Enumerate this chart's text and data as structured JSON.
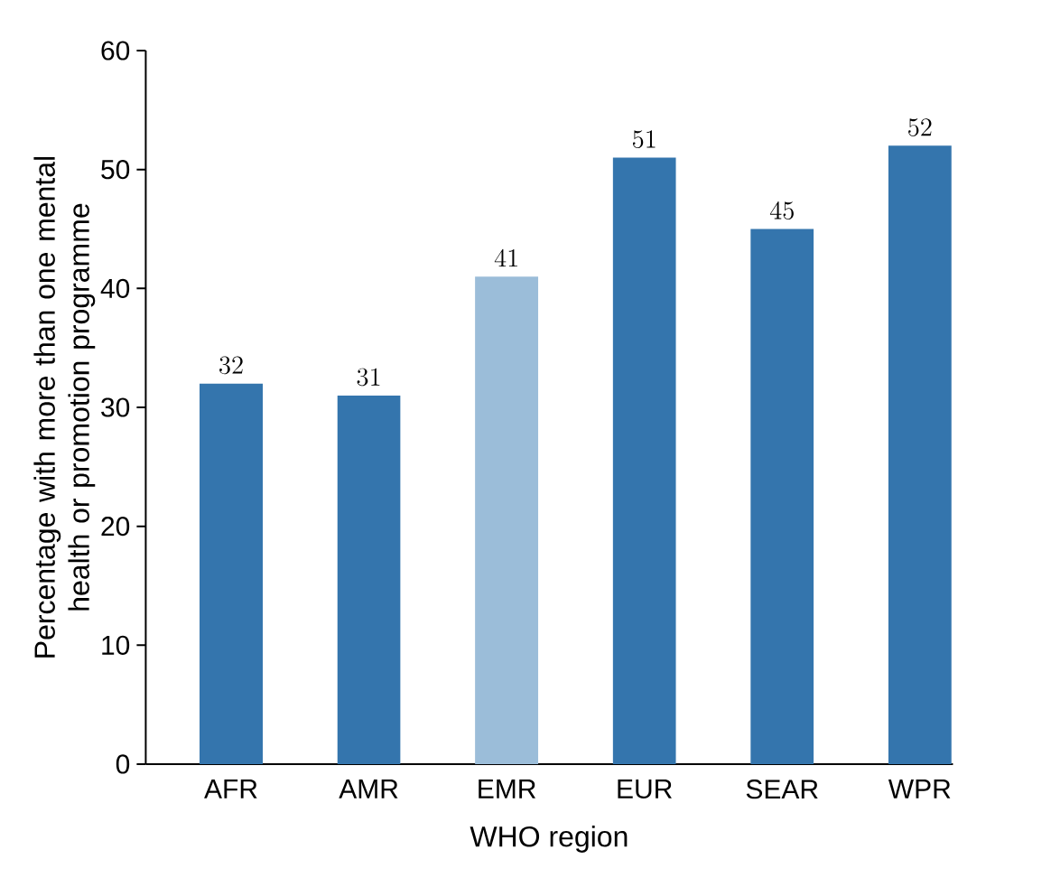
{
  "chart_data": {
    "type": "bar",
    "xlabel": "WHO region",
    "ylabel": "Percentage with more than one mental health or promotion programme",
    "categories": [
      "AFR",
      "AMR",
      "EMR",
      "EUR",
      "SEAR",
      "WPR"
    ],
    "values": [
      32,
      31,
      41,
      51,
      45,
      52
    ],
    "colors": [
      "#3475ad",
      "#3475ad",
      "#9bbdd9",
      "#3475ad",
      "#3475ad",
      "#3475ad"
    ],
    "ylim": [
      0,
      60
    ],
    "yticks": [
      0,
      10,
      20,
      30,
      40,
      50,
      60
    ],
    "data_labels": true
  }
}
